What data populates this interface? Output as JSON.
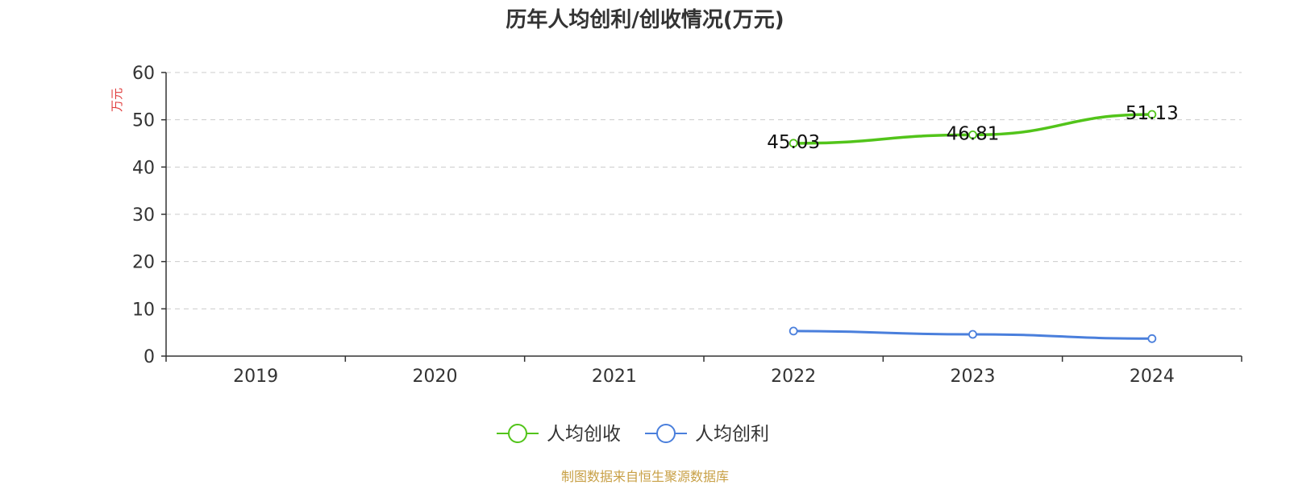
{
  "chart_data": {
    "type": "line",
    "title": "历年人均创利/创收情况(万元)",
    "ylabel": "万元",
    "xlabel": "",
    "categories": [
      "2019",
      "2020",
      "2021",
      "2022",
      "2023",
      "2024"
    ],
    "ylim": [
      0,
      60
    ],
    "yticks": [
      0,
      10,
      20,
      30,
      40,
      50,
      60
    ],
    "grid": true,
    "legend_position": "bottom",
    "series": [
      {
        "name": "人均创收",
        "color": "#52c41a",
        "values": [
          null,
          null,
          null,
          45.03,
          46.81,
          51.13
        ],
        "labels": [
          "",
          "",
          "",
          "45.03",
          "46.81",
          "51.13"
        ]
      },
      {
        "name": "人均创利",
        "color": "#4a7fdc",
        "values": [
          null,
          null,
          null,
          5.3,
          4.6,
          3.7
        ],
        "labels": [
          "",
          "",
          "",
          "",
          "",
          ""
        ]
      }
    ]
  },
  "axis_colors": {
    "ylabel": "#e03c3c",
    "axis": "#333333",
    "grid": "#cccccc"
  },
  "footer": {
    "source": "制图数据来自恒生聚源数据库"
  }
}
